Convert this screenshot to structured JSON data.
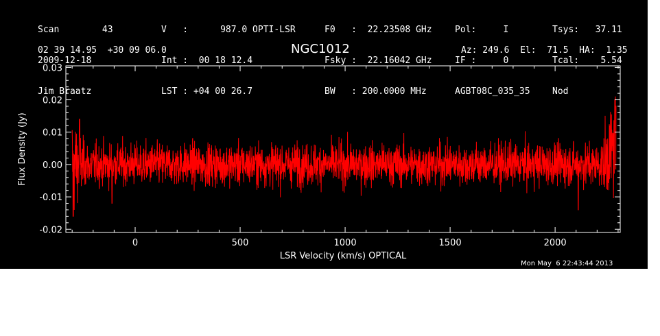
{
  "header": {
    "col1": [
      "Scan        43",
      "2009-12-18",
      "Jim Braatz"
    ],
    "col2": [
      "V   :      987.0 OPTI-LSR",
      "Int :  00 18 12.4",
      "LST : +04 00 26.7"
    ],
    "col3": [
      "F0   :  22.23508 GHz",
      "Fsky :  22.16042 GHz",
      "BW   : 200.0000 MHz"
    ],
    "col4": [
      "Pol:     I",
      "IF :     0",
      "AGBT08C_035_35"
    ],
    "col5": [
      "Tsys:   37.11",
      "Tcal:    5.54",
      "Nod"
    ],
    "coords": "02 39 14.95  +30 09 06.0",
    "source": "NGC1012",
    "pointing": "Az: 249.6  El:  71.5  HA:  1.35"
  },
  "timestamp": "Mon May  6 22:43:44 2013",
  "colors": {
    "background": "#000000",
    "axes": "#ffffff",
    "trace": "#ff0000"
  },
  "chart_data": {
    "type": "line",
    "xlabel": "LSR Velocity (km/s) OPTICAL",
    "ylabel": "Flux Density (Jy)",
    "xlim": [
      -330,
      2310
    ],
    "ylim": [
      -0.021,
      0.0305
    ],
    "x_ticks": [
      0,
      500,
      1000,
      1500,
      2000
    ],
    "x_tick_labels": [
      "0",
      "500",
      "1000",
      "1500",
      "2000"
    ],
    "y_ticks": [
      -0.02,
      -0.01,
      0.0,
      0.01,
      0.02,
      0.03
    ],
    "y_tick_labels": [
      "-0.02",
      "-0.01",
      "0.00",
      "0.01",
      "0.02",
      "0.03"
    ],
    "grid": false,
    "series": [
      {
        "x_range": [
          -300,
          2290
        ],
        "noise_rms": 0.0032,
        "baseline": 0.0,
        "features": [
          {
            "x": -295,
            "y": -0.016
          },
          {
            "x": -265,
            "y": 0.014
          },
          {
            "x": -110,
            "y": -0.012
          },
          {
            "x": 2110,
            "y": -0.014
          },
          {
            "x": 2285,
            "y": 0.02
          }
        ]
      }
    ]
  }
}
